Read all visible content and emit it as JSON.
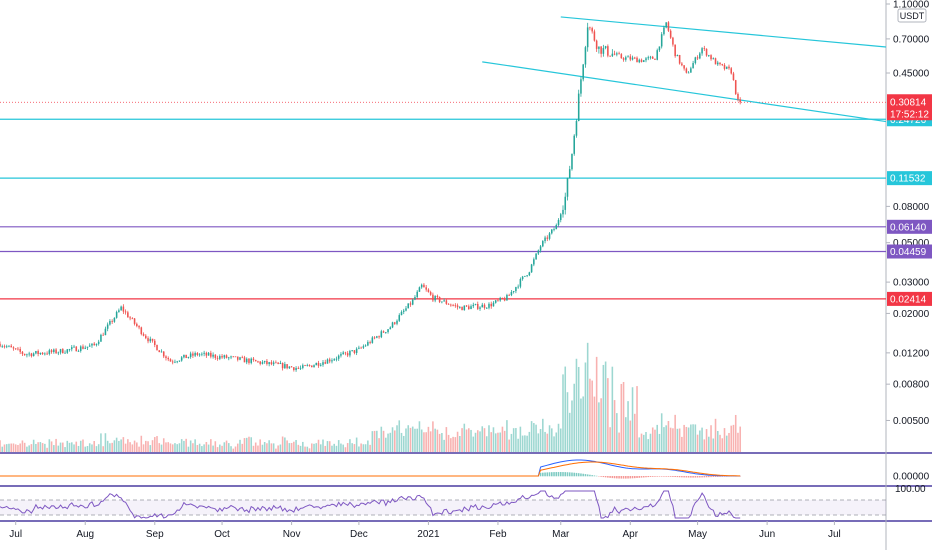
{
  "chart_data": {
    "type": "candlestick",
    "title": "",
    "currency_label": "USDT",
    "y_scale": "log",
    "ylim": [
      0.0035,
      1.1
    ],
    "y_ticks": [
      "1.10000",
      "0.70000",
      "0.45000",
      "0.08000",
      "0.05000",
      "0.03000",
      "0.02000",
      "0.01200",
      "0.00800",
      "0.00500"
    ],
    "x_ticks": [
      "Jul",
      "Aug",
      "Sep",
      "Oct",
      "Nov",
      "Dec",
      "2021",
      "Feb",
      "Mar",
      "Apr",
      "May",
      "Jun",
      "Jul"
    ],
    "x_range": [
      "2020-06-24",
      "2021-07-24"
    ],
    "last_price": {
      "value": "0.30814",
      "countdown": "17:52:12",
      "color": "#f23645"
    },
    "horizontal_levels": [
      {
        "value": "0.24726",
        "color": "#26c6da"
      },
      {
        "value": "0.11532",
        "color": "#26c6da"
      },
      {
        "value": "0.06140",
        "color": "#7e57c2"
      },
      {
        "value": "0.04459",
        "color": "#7e57c2"
      },
      {
        "value": "0.02414",
        "color": "#f23645"
      }
    ],
    "trendlines": [
      {
        "from": [
          "2021-03-01",
          0.93
        ],
        "to": [
          "2021-07-24",
          0.63
        ],
        "color": "#26c6da"
      },
      {
        "from": [
          "2021-01-25",
          0.52
        ],
        "to": [
          "2021-07-24",
          0.24
        ],
        "color": "#26c6da"
      }
    ],
    "price_anchors": [
      [
        "2020-06-24",
        0.0135
      ],
      [
        "2020-07-05",
        0.0118
      ],
      [
        "2020-07-20",
        0.0122
      ],
      [
        "2020-08-05",
        0.0132
      ],
      [
        "2020-08-17",
        0.0215
      ],
      [
        "2020-08-28",
        0.0148
      ],
      [
        "2020-09-08",
        0.0108
      ],
      [
        "2020-09-20",
        0.0118
      ],
      [
        "2020-10-05",
        0.0112
      ],
      [
        "2020-10-20",
        0.0105
      ],
      [
        "2020-11-05",
        0.0098
      ],
      [
        "2020-11-20",
        0.0112
      ],
      [
        "2020-12-01",
        0.0125
      ],
      [
        "2020-12-15",
        0.0168
      ],
      [
        "2020-12-25",
        0.0235
      ],
      [
        "2020-12-29",
        0.0285
      ],
      [
        "2021-01-03",
        0.0245
      ],
      [
        "2021-01-15",
        0.0215
      ],
      [
        "2021-01-28",
        0.0222
      ],
      [
        "2021-02-05",
        0.0245
      ],
      [
        "2021-02-15",
        0.035
      ],
      [
        "2021-02-20",
        0.048
      ],
      [
        "2021-02-27",
        0.062
      ],
      [
        "2021-03-03",
        0.09
      ],
      [
        "2021-03-06",
        0.16
      ],
      [
        "2021-03-09",
        0.33
      ],
      [
        "2021-03-13",
        0.85
      ],
      [
        "2021-03-18",
        0.62
      ],
      [
        "2021-03-28",
        0.55
      ],
      [
        "2021-04-07",
        0.53
      ],
      [
        "2021-04-12",
        0.55
      ],
      [
        "2021-04-17",
        0.86
      ],
      [
        "2021-04-21",
        0.58
      ],
      [
        "2021-04-26",
        0.44
      ],
      [
        "2021-05-03",
        0.62
      ],
      [
        "2021-05-10",
        0.5
      ],
      [
        "2021-05-16",
        0.46
      ],
      [
        "2021-05-19",
        0.31
      ],
      [
        "2021-05-20",
        0.30814
      ]
    ],
    "colors": {
      "up": "#26a69a",
      "down": "#ef5350",
      "macd": "#2962ff",
      "signal": "#ff6d00",
      "rsi": "#7e57c2"
    },
    "indicators": {
      "macd_tick": "0.00000",
      "rsi_tick": "100.00"
    }
  }
}
